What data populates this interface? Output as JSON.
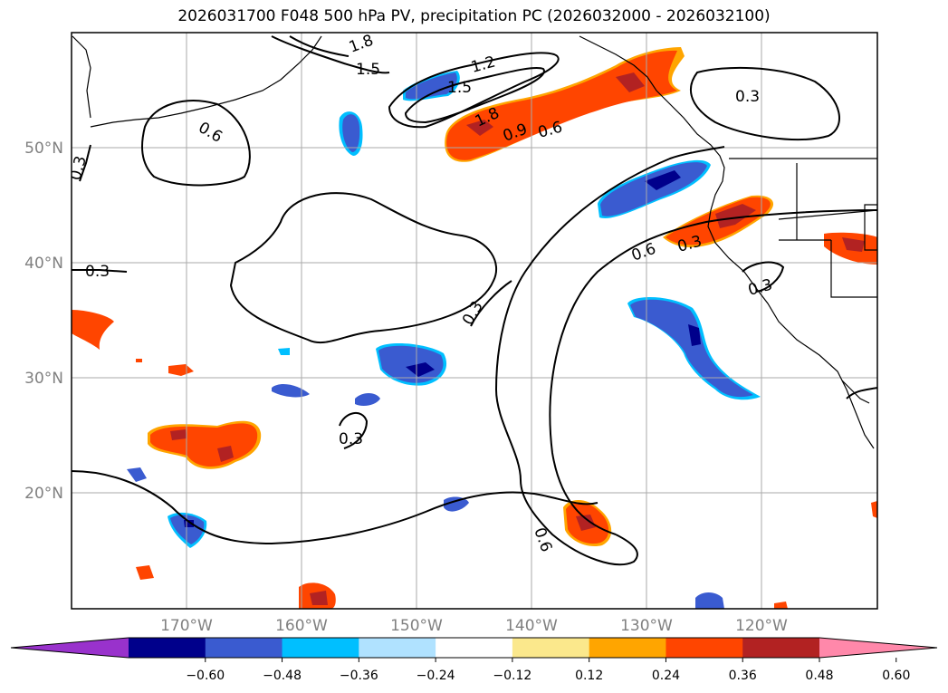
{
  "title": "2026031700 F048 500 hPa PV, precipitation PC (2026032000 - 2026032100)",
  "axes": {
    "lat_labels": [
      "50°N",
      "40°N",
      "30°N",
      "20°N"
    ],
    "lon_labels": [
      "170°W",
      "160°W",
      "150°W",
      "140°W",
      "130°W",
      "120°W"
    ],
    "label_color": "#808080"
  },
  "pv_contour_labels": [
    {
      "text": "1.8"
    },
    {
      "text": "1.5"
    },
    {
      "text": "1.2"
    },
    {
      "text": "1.5"
    },
    {
      "text": "1.8"
    },
    {
      "text": "0.9"
    },
    {
      "text": "0.6"
    },
    {
      "text": "0.6"
    },
    {
      "text": "0.3"
    },
    {
      "text": "0.3"
    },
    {
      "text": "0.6"
    },
    {
      "text": "0.3"
    },
    {
      "text": "0.3"
    },
    {
      "text": "0.3"
    },
    {
      "text": "0.3"
    },
    {
      "text": "0.6"
    },
    {
      "text": "0.3"
    }
  ],
  "colorbar": {
    "colors": [
      "#9932cc",
      "#00008b",
      "#3a5bd0",
      "#00bfff",
      "#b0e2ff",
      "#ffffff",
      "#fbe88c",
      "#ffa500",
      "#ff4500",
      "#b22222",
      "#ff88aa"
    ],
    "tick_labels": [
      "−0.60",
      "−0.48",
      "−0.36",
      "−0.24",
      "−0.12",
      "0.12",
      "0.24",
      "0.36",
      "0.48",
      "0.60"
    ]
  },
  "legend_colors": {
    "contour": "#000000",
    "grid": "#aaaaaa",
    "coast": "#000000"
  }
}
